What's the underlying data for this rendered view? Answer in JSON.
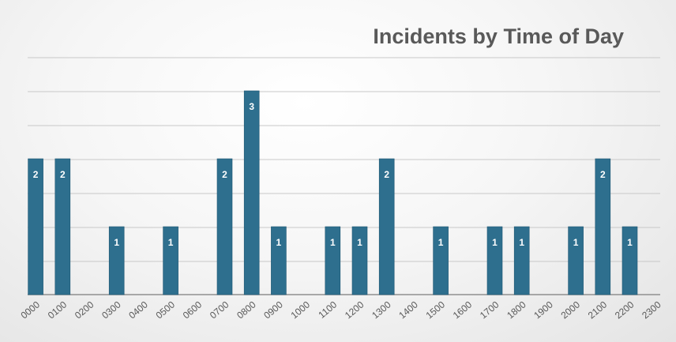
{
  "chart_data": {
    "type": "bar",
    "title": "Incidents by Time of Day",
    "xlabel": "",
    "ylabel": "",
    "categories": [
      "0000",
      "0100",
      "0200",
      "0300",
      "0400",
      "0500",
      "0600",
      "0700",
      "0800",
      "0900",
      "1000",
      "1100",
      "1200",
      "1300",
      "1400",
      "1500",
      "1600",
      "1700",
      "1800",
      "1900",
      "2000",
      "2100",
      "2200",
      "2300"
    ],
    "values": [
      2,
      2,
      0,
      1,
      0,
      1,
      0,
      2,
      3,
      1,
      0,
      1,
      1,
      2,
      0,
      1,
      0,
      1,
      1,
      0,
      1,
      2,
      1,
      0
    ],
    "ylim": [
      0,
      3
    ],
    "grid": true,
    "legend": "none",
    "colors": {
      "bar": "#2e6f8e",
      "bar_edge": "#1f5773",
      "grid": "#c8c8c8",
      "axis": "#8f8f8f"
    }
  }
}
